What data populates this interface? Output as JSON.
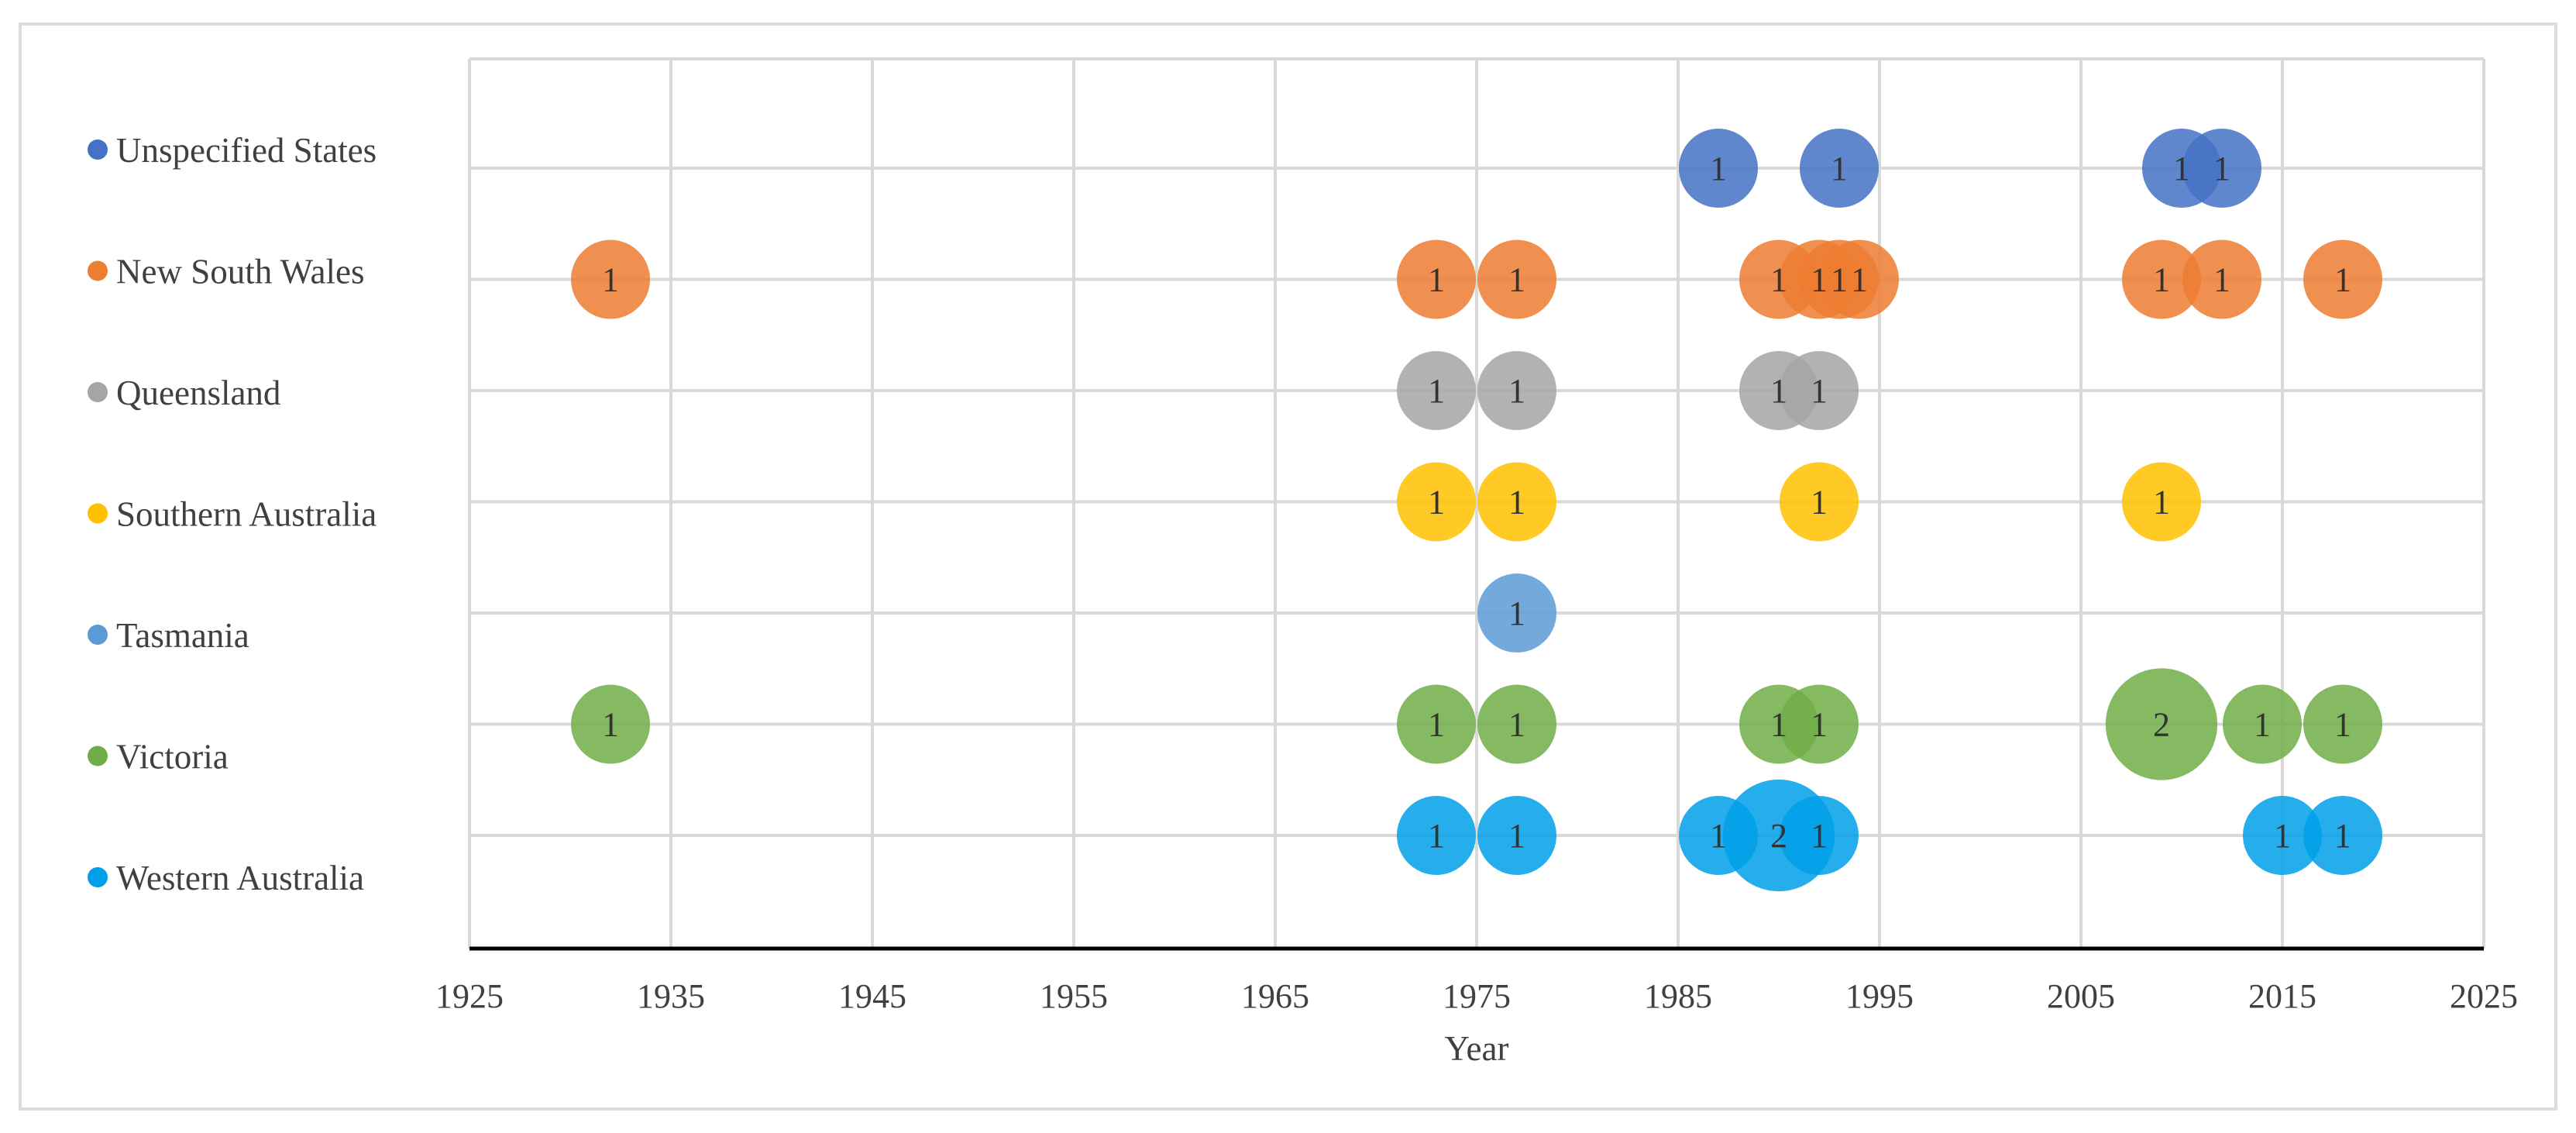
{
  "chart_data": {
    "type": "bubble",
    "title": "",
    "xlabel": "Year",
    "ylabel": "",
    "xlim": [
      1925,
      2025
    ],
    "xticks": [
      1925,
      1935,
      1945,
      1955,
      1965,
      1975,
      1985,
      1995,
      2005,
      2015,
      2025
    ],
    "grid": true,
    "legend_position": "left",
    "series": [
      {
        "name": "Unspecified States",
        "color": "#4472C4",
        "points": [
          {
            "x": 1987,
            "size": 1,
            "label": "1"
          },
          {
            "x": 1993,
            "size": 1,
            "label": "1"
          },
          {
            "x": 2010,
            "size": 1,
            "label": "1"
          },
          {
            "x": 2012,
            "size": 1,
            "label": "1"
          }
        ]
      },
      {
        "name": "New South Wales",
        "color": "#ED7D31",
        "points": [
          {
            "x": 1932,
            "size": 1,
            "label": "1"
          },
          {
            "x": 1973,
            "size": 1,
            "label": "1"
          },
          {
            "x": 1977,
            "size": 1,
            "label": "1"
          },
          {
            "x": 1990,
            "size": 1,
            "label": "1"
          },
          {
            "x": 1992,
            "size": 1,
            "label": "1"
          },
          {
            "x": 1993,
            "size": 1,
            "label": "1"
          },
          {
            "x": 1994,
            "size": 1,
            "label": "1"
          },
          {
            "x": 2009,
            "size": 1,
            "label": "1"
          },
          {
            "x": 2012,
            "size": 1,
            "label": "1"
          },
          {
            "x": 2018,
            "size": 1,
            "label": "1"
          }
        ]
      },
      {
        "name": "Queensland",
        "color": "#A5A5A5",
        "points": [
          {
            "x": 1973,
            "size": 1,
            "label": "1"
          },
          {
            "x": 1977,
            "size": 1,
            "label": "1"
          },
          {
            "x": 1990,
            "size": 1,
            "label": "1"
          },
          {
            "x": 1992,
            "size": 1,
            "label": "1"
          }
        ]
      },
      {
        "name": "Southern Australia",
        "color": "#FFC000",
        "points": [
          {
            "x": 1973,
            "size": 1,
            "label": "1"
          },
          {
            "x": 1977,
            "size": 1,
            "label": "1"
          },
          {
            "x": 1992,
            "size": 1,
            "label": "1"
          },
          {
            "x": 2009,
            "size": 1,
            "label": "1"
          }
        ]
      },
      {
        "name": "Tasmania",
        "color": "#5B9BD5",
        "points": [
          {
            "x": 1977,
            "size": 1,
            "label": "1"
          }
        ]
      },
      {
        "name": "Victoria",
        "color": "#70AD47",
        "points": [
          {
            "x": 1932,
            "size": 1,
            "label": "1"
          },
          {
            "x": 1973,
            "size": 1,
            "label": "1"
          },
          {
            "x": 1977,
            "size": 1,
            "label": "1"
          },
          {
            "x": 1990,
            "size": 1,
            "label": "1"
          },
          {
            "x": 1992,
            "size": 1,
            "label": "1"
          },
          {
            "x": 2009,
            "size": 2,
            "label": "2"
          },
          {
            "x": 2014,
            "size": 1,
            "label": "1"
          },
          {
            "x": 2018,
            "size": 1,
            "label": "1"
          }
        ]
      },
      {
        "name": "Western Australia",
        "color": "#00A0E9",
        "points": [
          {
            "x": 1973,
            "size": 1,
            "label": "1"
          },
          {
            "x": 1977,
            "size": 1,
            "label": "1"
          },
          {
            "x": 1987,
            "size": 1,
            "label": "1"
          },
          {
            "x": 1990,
            "size": 2,
            "label": "2"
          },
          {
            "x": 1992,
            "size": 1,
            "label": "1"
          },
          {
            "x": 2015,
            "size": 1,
            "label": "1"
          },
          {
            "x": 2018,
            "size": 1,
            "label": "1"
          }
        ]
      }
    ]
  }
}
